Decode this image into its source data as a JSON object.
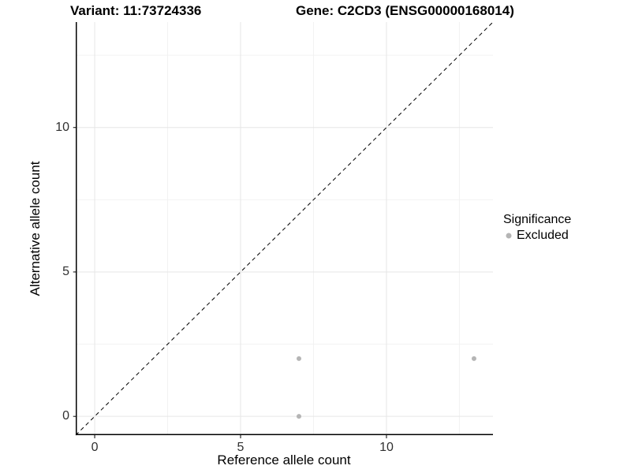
{
  "header": {
    "title_left": "Variant: 11:73724336",
    "title_right": "Gene: C2CD3 (ENSG00000168014)"
  },
  "chart_data": {
    "type": "scatter",
    "title": "Variant: 11:73724336 / Gene: C2CD3 (ENSG00000168014)",
    "xlabel": "Reference allele count",
    "ylabel": "Alternative allele count",
    "xlim": [
      -0.65,
      13.65
    ],
    "ylim": [
      -0.65,
      13.65
    ],
    "x_major_ticks": [
      0,
      5,
      10
    ],
    "y_major_ticks": [
      0,
      5,
      10
    ],
    "x_minor_gridlines": [
      2.5,
      7.5,
      12.5
    ],
    "y_minor_gridlines": [
      2.5,
      7.5,
      12.5
    ],
    "grid": "major-and-minor",
    "reference_line": {
      "kind": "identity y=x",
      "linetype": "dashed",
      "color": "#000000"
    },
    "series": [
      {
        "name": "Excluded",
        "color": "#b5b5b5",
        "points": [
          [
            7,
            0
          ],
          [
            7,
            2
          ],
          [
            13,
            2
          ]
        ]
      }
    ],
    "legend": {
      "title": "Significance",
      "position": "right",
      "entries": [
        {
          "label": "Excluded",
          "color": "#b5b5b5"
        }
      ]
    }
  },
  "colors": {
    "background": "#ffffff",
    "grid_major": "#e6e6e6",
    "grid_minor": "#f2f2f2",
    "axis_line": "#000000",
    "tick_text": "#303030",
    "point": "#b5b5b5"
  }
}
